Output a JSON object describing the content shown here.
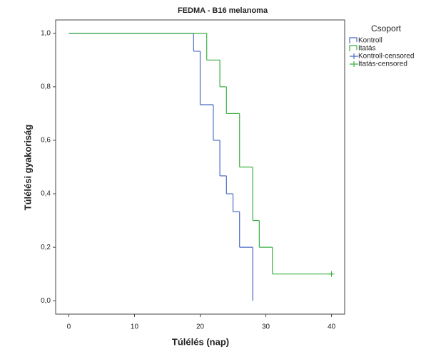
{
  "chart_data": {
    "type": "step",
    "title": "FEDMA - B16 melanoma",
    "x_label": "Túlélés (nap)",
    "y_label": "Túlélési gyakoriság",
    "legend_title": "Csoport",
    "legend": "right",
    "xlim": [
      -2,
      42
    ],
    "xticks": [
      0,
      10,
      20,
      30,
      40
    ],
    "ylim": [
      -0.05,
      1.05
    ],
    "yticks": [
      {
        "value": 0,
        "label": "0,0"
      },
      {
        "value": 0.2,
        "label": "0,2"
      },
      {
        "value": 0.4,
        "label": "0,4"
      },
      {
        "value": 0.6,
        "label": "0,6"
      },
      {
        "value": 0.8,
        "label": "0,8"
      },
      {
        "value": 1,
        "label": "1,0"
      }
    ],
    "series": [
      {
        "name": "Kontroll",
        "color": "#4a6cc4",
        "style": "step",
        "x": [
          0,
          19,
          20,
          22,
          23,
          24,
          25,
          26,
          28
        ],
        "values": [
          1,
          0.933,
          0.733,
          0.6,
          0.467,
          0.4,
          0.333,
          0.2,
          0
        ]
      },
      {
        "name": "Itatás",
        "color": "#3cb043",
        "style": "step",
        "x": [
          0,
          21,
          23,
          24,
          26,
          28,
          29,
          31
        ],
        "values": [
          1,
          0.9,
          0.8,
          0.7,
          0.5,
          0.3,
          0.2,
          0.1
        ]
      },
      {
        "name": "Kontroll-censored",
        "color": "#4a6cc4",
        "style": "censored",
        "x": [],
        "values": []
      },
      {
        "name": "Itatás-censored",
        "color": "#3cb043",
        "style": "censored",
        "x": [
          40
        ],
        "values": [
          0.1
        ]
      }
    ]
  }
}
